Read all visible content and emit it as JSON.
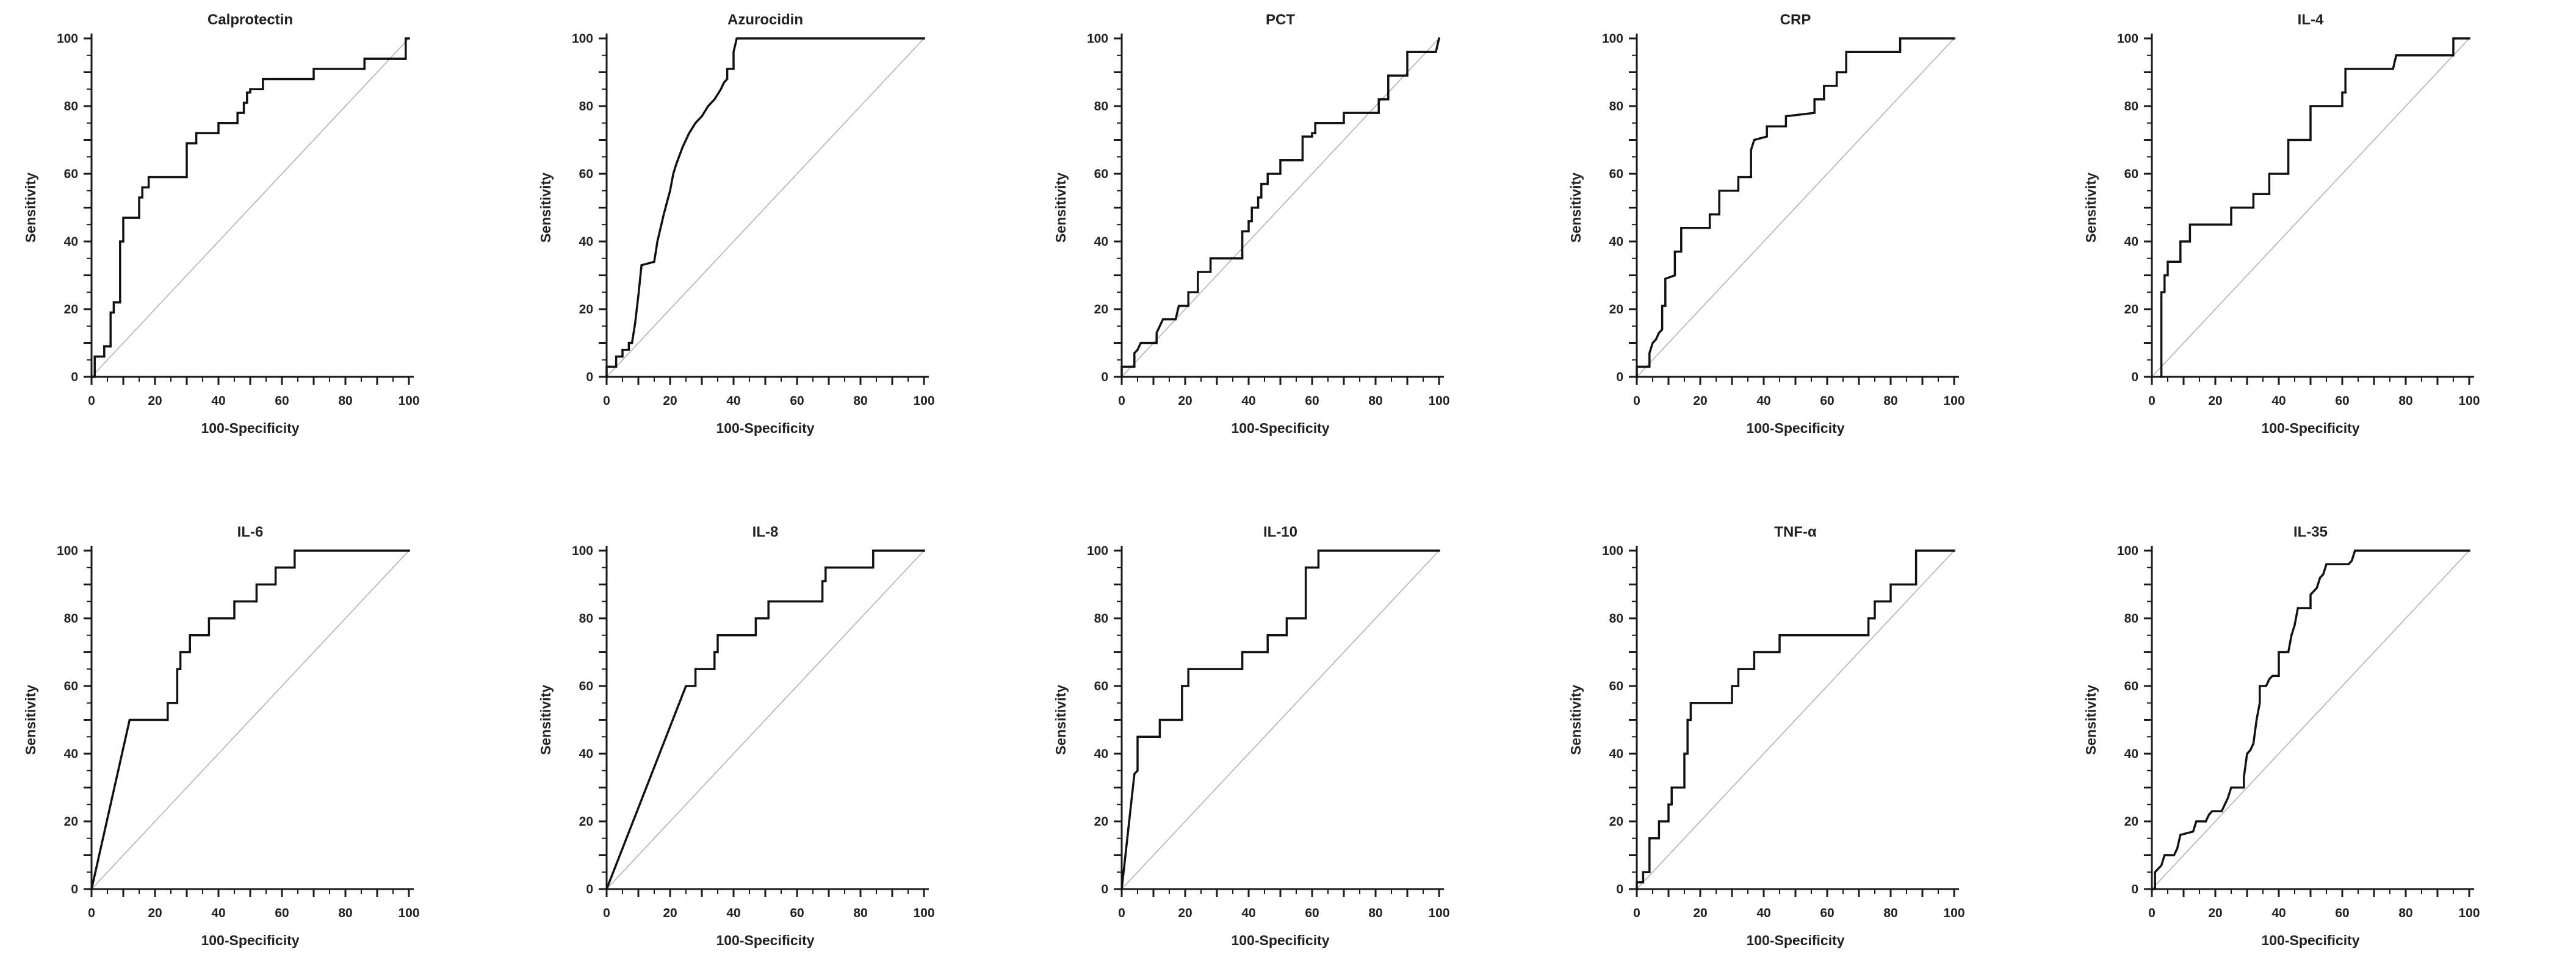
{
  "figure": {
    "rows": 2,
    "cols": 5,
    "background": "#ffffff"
  },
  "axis": {
    "xlabel": "100-Specificity",
    "ylabel": "Sensitivity",
    "xlim": [
      0,
      100
    ],
    "ylim": [
      0,
      100
    ],
    "labeled_ticks": [
      0,
      20,
      40,
      60,
      80,
      100
    ],
    "minor_tick_step": 5,
    "mid_tick_step": 10,
    "colors": {
      "curve": "#111111",
      "axis": "#1a1a1a",
      "diagonal": "#b3b3b3",
      "text": "#222222"
    }
  },
  "chart_data": [
    {
      "id": "calprotectin",
      "type": "line",
      "title": "Calprotectin",
      "xlabel": "100-Specificity",
      "ylabel": "Sensitivity",
      "xlim": [
        0,
        100
      ],
      "ylim": [
        0,
        100
      ],
      "diagonal_reference": true,
      "roc_points": [
        [
          0,
          0
        ],
        [
          1,
          0
        ],
        [
          1,
          6
        ],
        [
          4,
          6
        ],
        [
          4,
          9
        ],
        [
          6,
          9
        ],
        [
          6,
          19
        ],
        [
          7,
          19
        ],
        [
          7,
          22
        ],
        [
          9,
          22
        ],
        [
          9,
          40
        ],
        [
          10,
          40
        ],
        [
          10,
          47
        ],
        [
          15,
          47
        ],
        [
          15,
          53
        ],
        [
          16,
          53
        ],
        [
          16,
          56
        ],
        [
          18,
          56
        ],
        [
          18,
          59
        ],
        [
          30,
          59
        ],
        [
          30,
          69
        ],
        [
          33,
          69
        ],
        [
          33,
          72
        ],
        [
          40,
          72
        ],
        [
          40,
          75
        ],
        [
          46,
          75
        ],
        [
          46,
          78
        ],
        [
          48,
          78
        ],
        [
          48,
          81
        ],
        [
          49,
          81
        ],
        [
          49,
          84
        ],
        [
          50,
          84
        ],
        [
          50,
          85
        ],
        [
          54,
          85
        ],
        [
          54,
          88
        ],
        [
          70,
          88
        ],
        [
          70,
          91
        ],
        [
          86,
          91
        ],
        [
          86,
          94
        ],
        [
          99,
          94
        ],
        [
          99,
          100
        ],
        [
          100,
          100
        ]
      ]
    },
    {
      "id": "azurocidin",
      "type": "line",
      "title": "Azurocidin",
      "xlabel": "100-Specificity",
      "ylabel": "Sensitivity",
      "xlim": [
        0,
        100
      ],
      "ylim": [
        0,
        100
      ],
      "diagonal_reference": true,
      "roc_points": [
        [
          0,
          0
        ],
        [
          0,
          3
        ],
        [
          3,
          3
        ],
        [
          3,
          6
        ],
        [
          5,
          6
        ],
        [
          5,
          8
        ],
        [
          7,
          8
        ],
        [
          7,
          10
        ],
        [
          8,
          10
        ],
        [
          9,
          16
        ],
        [
          10,
          24
        ],
        [
          11,
          33
        ],
        [
          15,
          34
        ],
        [
          16,
          40
        ],
        [
          18,
          48
        ],
        [
          20,
          55
        ],
        [
          21,
          60
        ],
        [
          22,
          63
        ],
        [
          24,
          68
        ],
        [
          26,
          72
        ],
        [
          28,
          75
        ],
        [
          30,
          77
        ],
        [
          32,
          80
        ],
        [
          34,
          82
        ],
        [
          36,
          85
        ],
        [
          37,
          87
        ],
        [
          38,
          88
        ],
        [
          38,
          91
        ],
        [
          40,
          91
        ],
        [
          40,
          96
        ],
        [
          41,
          100
        ],
        [
          100,
          100
        ]
      ]
    },
    {
      "id": "pct",
      "type": "line",
      "title": "PCT",
      "xlabel": "100-Specificity",
      "ylabel": "Sensitivity",
      "xlim": [
        0,
        100
      ],
      "ylim": [
        0,
        100
      ],
      "diagonal_reference": true,
      "roc_points": [
        [
          0,
          0
        ],
        [
          0,
          3
        ],
        [
          4,
          3
        ],
        [
          4,
          7
        ],
        [
          5,
          8
        ],
        [
          6,
          10
        ],
        [
          11,
          10
        ],
        [
          11,
          13
        ],
        [
          12,
          15
        ],
        [
          13,
          17
        ],
        [
          17,
          17
        ],
        [
          18,
          21
        ],
        [
          21,
          21
        ],
        [
          21,
          25
        ],
        [
          24,
          25
        ],
        [
          24,
          31
        ],
        [
          28,
          31
        ],
        [
          28,
          35
        ],
        [
          38,
          35
        ],
        [
          38,
          43
        ],
        [
          40,
          43
        ],
        [
          40,
          46
        ],
        [
          41,
          46
        ],
        [
          41,
          50
        ],
        [
          43,
          50
        ],
        [
          43,
          53
        ],
        [
          44,
          53
        ],
        [
          44,
          57
        ],
        [
          46,
          57
        ],
        [
          46,
          60
        ],
        [
          50,
          60
        ],
        [
          50,
          64
        ],
        [
          57,
          64
        ],
        [
          57,
          71
        ],
        [
          60,
          71
        ],
        [
          60,
          72
        ],
        [
          61,
          72
        ],
        [
          61,
          75
        ],
        [
          70,
          75
        ],
        [
          70,
          78
        ],
        [
          81,
          78
        ],
        [
          81,
          82
        ],
        [
          84,
          82
        ],
        [
          84,
          89
        ],
        [
          90,
          89
        ],
        [
          90,
          96
        ],
        [
          99,
          96
        ],
        [
          100,
          100
        ]
      ]
    },
    {
      "id": "crp",
      "type": "line",
      "title": "CRP",
      "xlabel": "100-Specificity",
      "ylabel": "Sensitivity",
      "xlim": [
        0,
        100
      ],
      "ylim": [
        0,
        100
      ],
      "diagonal_reference": true,
      "roc_points": [
        [
          0,
          0
        ],
        [
          0,
          3
        ],
        [
          4,
          3
        ],
        [
          4,
          7
        ],
        [
          5,
          10
        ],
        [
          6,
          11
        ],
        [
          7,
          13
        ],
        [
          8,
          14
        ],
        [
          8,
          21
        ],
        [
          9,
          21
        ],
        [
          9,
          29
        ],
        [
          12,
          30
        ],
        [
          12,
          37
        ],
        [
          14,
          37
        ],
        [
          14,
          44
        ],
        [
          23,
          44
        ],
        [
          23,
          48
        ],
        [
          26,
          48
        ],
        [
          26,
          55
        ],
        [
          32,
          55
        ],
        [
          32,
          59
        ],
        [
          36,
          59
        ],
        [
          36,
          67
        ],
        [
          37,
          70
        ],
        [
          41,
          71
        ],
        [
          41,
          74
        ],
        [
          47,
          74
        ],
        [
          47,
          77
        ],
        [
          56,
          78
        ],
        [
          56,
          82
        ],
        [
          59,
          82
        ],
        [
          59,
          86
        ],
        [
          63,
          86
        ],
        [
          63,
          90
        ],
        [
          66,
          90
        ],
        [
          66,
          96
        ],
        [
          83,
          96
        ],
        [
          83,
          100
        ],
        [
          100,
          100
        ]
      ]
    },
    {
      "id": "il-4",
      "type": "line",
      "title": "IL-4",
      "xlabel": "100-Specificity",
      "ylabel": "Sensitivity",
      "xlim": [
        0,
        100
      ],
      "ylim": [
        0,
        100
      ],
      "diagonal_reference": true,
      "roc_points": [
        [
          3,
          0
        ],
        [
          3,
          25
        ],
        [
          4,
          25
        ],
        [
          4,
          30
        ],
        [
          5,
          30
        ],
        [
          5,
          34
        ],
        [
          9,
          34
        ],
        [
          9,
          40
        ],
        [
          12,
          40
        ],
        [
          12,
          45
        ],
        [
          25,
          45
        ],
        [
          25,
          50
        ],
        [
          32,
          50
        ],
        [
          32,
          54
        ],
        [
          37,
          54
        ],
        [
          37,
          60
        ],
        [
          43,
          60
        ],
        [
          43,
          70
        ],
        [
          50,
          70
        ],
        [
          50,
          80
        ],
        [
          60,
          80
        ],
        [
          60,
          84
        ],
        [
          61,
          84
        ],
        [
          61,
          91
        ],
        [
          76,
          91
        ],
        [
          77,
          95
        ],
        [
          95,
          95
        ],
        [
          95,
          100
        ],
        [
          100,
          100
        ]
      ]
    },
    {
      "id": "il-6",
      "type": "line",
      "title": "IL-6",
      "xlabel": "100-Specificity",
      "ylabel": "Sensitivity",
      "xlim": [
        0,
        100
      ],
      "ylim": [
        0,
        100
      ],
      "diagonal_reference": true,
      "roc_points": [
        [
          0,
          0
        ],
        [
          12,
          50
        ],
        [
          24,
          50
        ],
        [
          24,
          55
        ],
        [
          27,
          55
        ],
        [
          27,
          65
        ],
        [
          28,
          65
        ],
        [
          28,
          70
        ],
        [
          31,
          70
        ],
        [
          31,
          75
        ],
        [
          37,
          75
        ],
        [
          37,
          80
        ],
        [
          45,
          80
        ],
        [
          45,
          85
        ],
        [
          52,
          85
        ],
        [
          52,
          90
        ],
        [
          58,
          90
        ],
        [
          58,
          95
        ],
        [
          64,
          95
        ],
        [
          64,
          100
        ],
        [
          100,
          100
        ]
      ]
    },
    {
      "id": "il-8",
      "type": "line",
      "title": "IL-8",
      "xlabel": "100-Specificity",
      "ylabel": "Sensitivity",
      "xlim": [
        0,
        100
      ],
      "ylim": [
        0,
        100
      ],
      "diagonal_reference": true,
      "roc_points": [
        [
          0,
          0
        ],
        [
          25,
          60
        ],
        [
          28,
          60
        ],
        [
          28,
          65
        ],
        [
          34,
          65
        ],
        [
          34,
          70
        ],
        [
          35,
          70
        ],
        [
          35,
          75
        ],
        [
          47,
          75
        ],
        [
          47,
          80
        ],
        [
          51,
          80
        ],
        [
          51,
          85
        ],
        [
          68,
          85
        ],
        [
          68,
          91
        ],
        [
          69,
          91
        ],
        [
          69,
          95
        ],
        [
          84,
          95
        ],
        [
          84,
          100
        ],
        [
          100,
          100
        ]
      ]
    },
    {
      "id": "il-10",
      "type": "line",
      "title": "IL-10",
      "xlabel": "100-Specificity",
      "ylabel": "Sensitivity",
      "xlim": [
        0,
        100
      ],
      "ylim": [
        0,
        100
      ],
      "diagonal_reference": true,
      "roc_points": [
        [
          0,
          0
        ],
        [
          4,
          34
        ],
        [
          5,
          35
        ],
        [
          5,
          45
        ],
        [
          12,
          45
        ],
        [
          12,
          50
        ],
        [
          19,
          50
        ],
        [
          19,
          60
        ],
        [
          21,
          60
        ],
        [
          21,
          65
        ],
        [
          38,
          65
        ],
        [
          38,
          70
        ],
        [
          46,
          70
        ],
        [
          46,
          75
        ],
        [
          52,
          75
        ],
        [
          52,
          80
        ],
        [
          58,
          80
        ],
        [
          58,
          95
        ],
        [
          62,
          95
        ],
        [
          62,
          100
        ],
        [
          100,
          100
        ]
      ]
    },
    {
      "id": "tnf-alpha",
      "type": "line",
      "title": "TNF-α",
      "xlabel": "100-Specificity",
      "ylabel": "Sensitivity",
      "xlim": [
        0,
        100
      ],
      "ylim": [
        0,
        100
      ],
      "diagonal_reference": true,
      "roc_points": [
        [
          0,
          0
        ],
        [
          0,
          2
        ],
        [
          2,
          2
        ],
        [
          2,
          5
        ],
        [
          4,
          5
        ],
        [
          4,
          15
        ],
        [
          7,
          15
        ],
        [
          7,
          20
        ],
        [
          10,
          20
        ],
        [
          10,
          25
        ],
        [
          11,
          25
        ],
        [
          11,
          30
        ],
        [
          15,
          30
        ],
        [
          15,
          40
        ],
        [
          16,
          40
        ],
        [
          16,
          50
        ],
        [
          17,
          50
        ],
        [
          17,
          55
        ],
        [
          18,
          55
        ],
        [
          30,
          55
        ],
        [
          30,
          60
        ],
        [
          32,
          60
        ],
        [
          32,
          65
        ],
        [
          37,
          65
        ],
        [
          37,
          70
        ],
        [
          45,
          70
        ],
        [
          45,
          75
        ],
        [
          73,
          75
        ],
        [
          73,
          80
        ],
        [
          75,
          80
        ],
        [
          75,
          85
        ],
        [
          80,
          85
        ],
        [
          80,
          90
        ],
        [
          88,
          90
        ],
        [
          88,
          100
        ],
        [
          100,
          100
        ]
      ]
    },
    {
      "id": "il-35",
      "type": "line",
      "title": "IL-35",
      "xlabel": "100-Specificity",
      "ylabel": "Sensitivity",
      "xlim": [
        0,
        100
      ],
      "ylim": [
        0,
        100
      ],
      "diagonal_reference": true,
      "roc_points": [
        [
          0,
          0
        ],
        [
          1,
          0
        ],
        [
          1,
          5
        ],
        [
          3,
          7
        ],
        [
          4,
          10
        ],
        [
          7,
          10
        ],
        [
          8,
          12
        ],
        [
          9,
          16
        ],
        [
          13,
          17
        ],
        [
          14,
          20
        ],
        [
          17,
          20
        ],
        [
          18,
          22
        ],
        [
          19,
          23
        ],
        [
          22,
          23
        ],
        [
          23,
          25
        ],
        [
          24,
          27
        ],
        [
          25,
          30
        ],
        [
          29,
          30
        ],
        [
          29,
          33
        ],
        [
          30,
          40
        ],
        [
          31,
          41
        ],
        [
          32,
          43
        ],
        [
          33,
          50
        ],
        [
          34,
          55
        ],
        [
          34,
          60
        ],
        [
          36,
          60
        ],
        [
          37,
          62
        ],
        [
          38,
          63
        ],
        [
          40,
          63
        ],
        [
          40,
          70
        ],
        [
          43,
          70
        ],
        [
          44,
          75
        ],
        [
          45,
          78
        ],
        [
          46,
          83
        ],
        [
          50,
          83
        ],
        [
          50,
          87
        ],
        [
          52,
          89
        ],
        [
          53,
          92
        ],
        [
          54,
          93
        ],
        [
          55,
          96
        ],
        [
          62,
          96
        ],
        [
          63,
          97
        ],
        [
          64,
          100
        ],
        [
          100,
          100
        ]
      ]
    }
  ]
}
